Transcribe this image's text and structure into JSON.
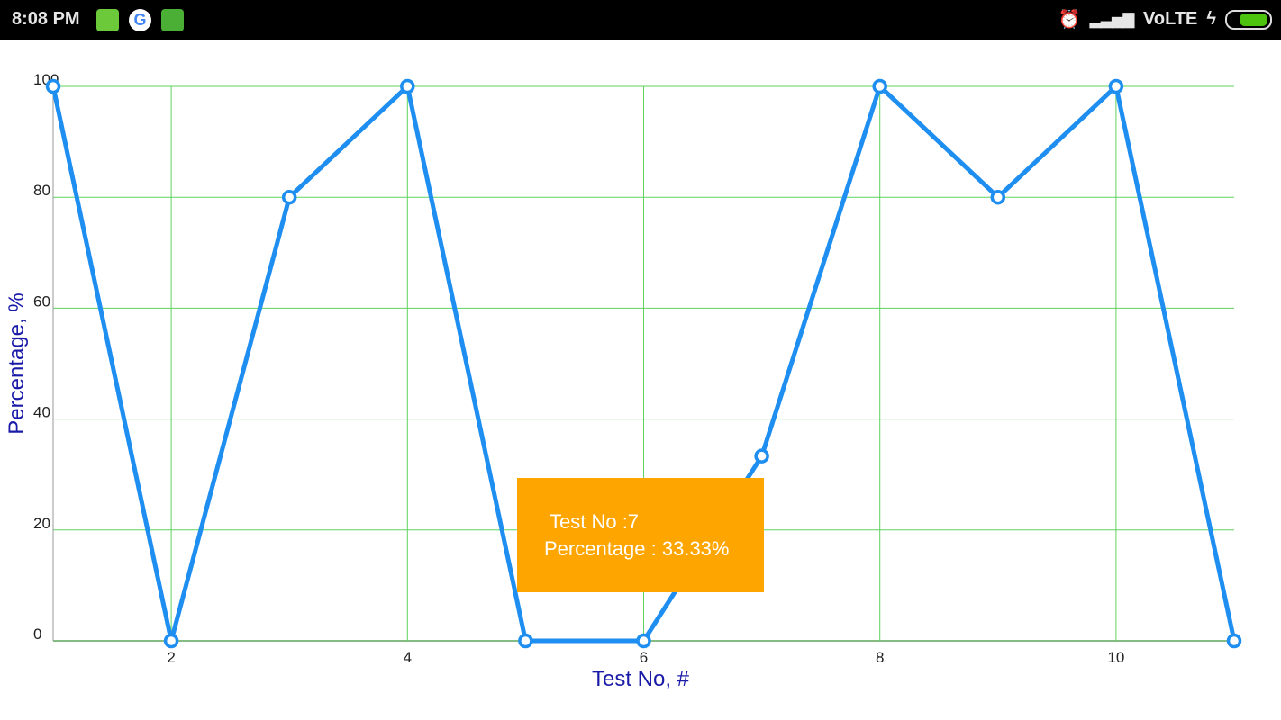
{
  "status_bar": {
    "time": "8:08 PM",
    "left_icons": [
      "battery-app-icon",
      "google-icon",
      "android-app-icon"
    ],
    "right_icons": [
      "alarm-icon",
      "signal-icon",
      "charging-icon",
      "battery-icon"
    ],
    "network": "VoLTE"
  },
  "tooltip": {
    "line1": "Test No :7",
    "line2": "Percentage : 33.33%",
    "background": "#ffa500"
  },
  "chart_data": {
    "type": "line",
    "xlabel": "Test No, #",
    "ylabel": "Percentage, %",
    "x": [
      1,
      2,
      3,
      4,
      5,
      6,
      7,
      8,
      9,
      10,
      11
    ],
    "values": [
      100,
      0,
      80,
      100,
      0,
      0,
      33.33,
      100,
      80,
      100,
      0
    ],
    "xlim": [
      1,
      11
    ],
    "ylim": [
      0,
      100
    ],
    "xticks": [
      "2",
      "4",
      "6",
      "8",
      "10"
    ],
    "yticks": [
      "0",
      "20",
      "40",
      "60",
      "80",
      "100"
    ],
    "grid": true,
    "colors": {
      "line": "#1e8ef0",
      "grid": "#5ed35e",
      "axis_label": "#1a1aa8"
    }
  }
}
